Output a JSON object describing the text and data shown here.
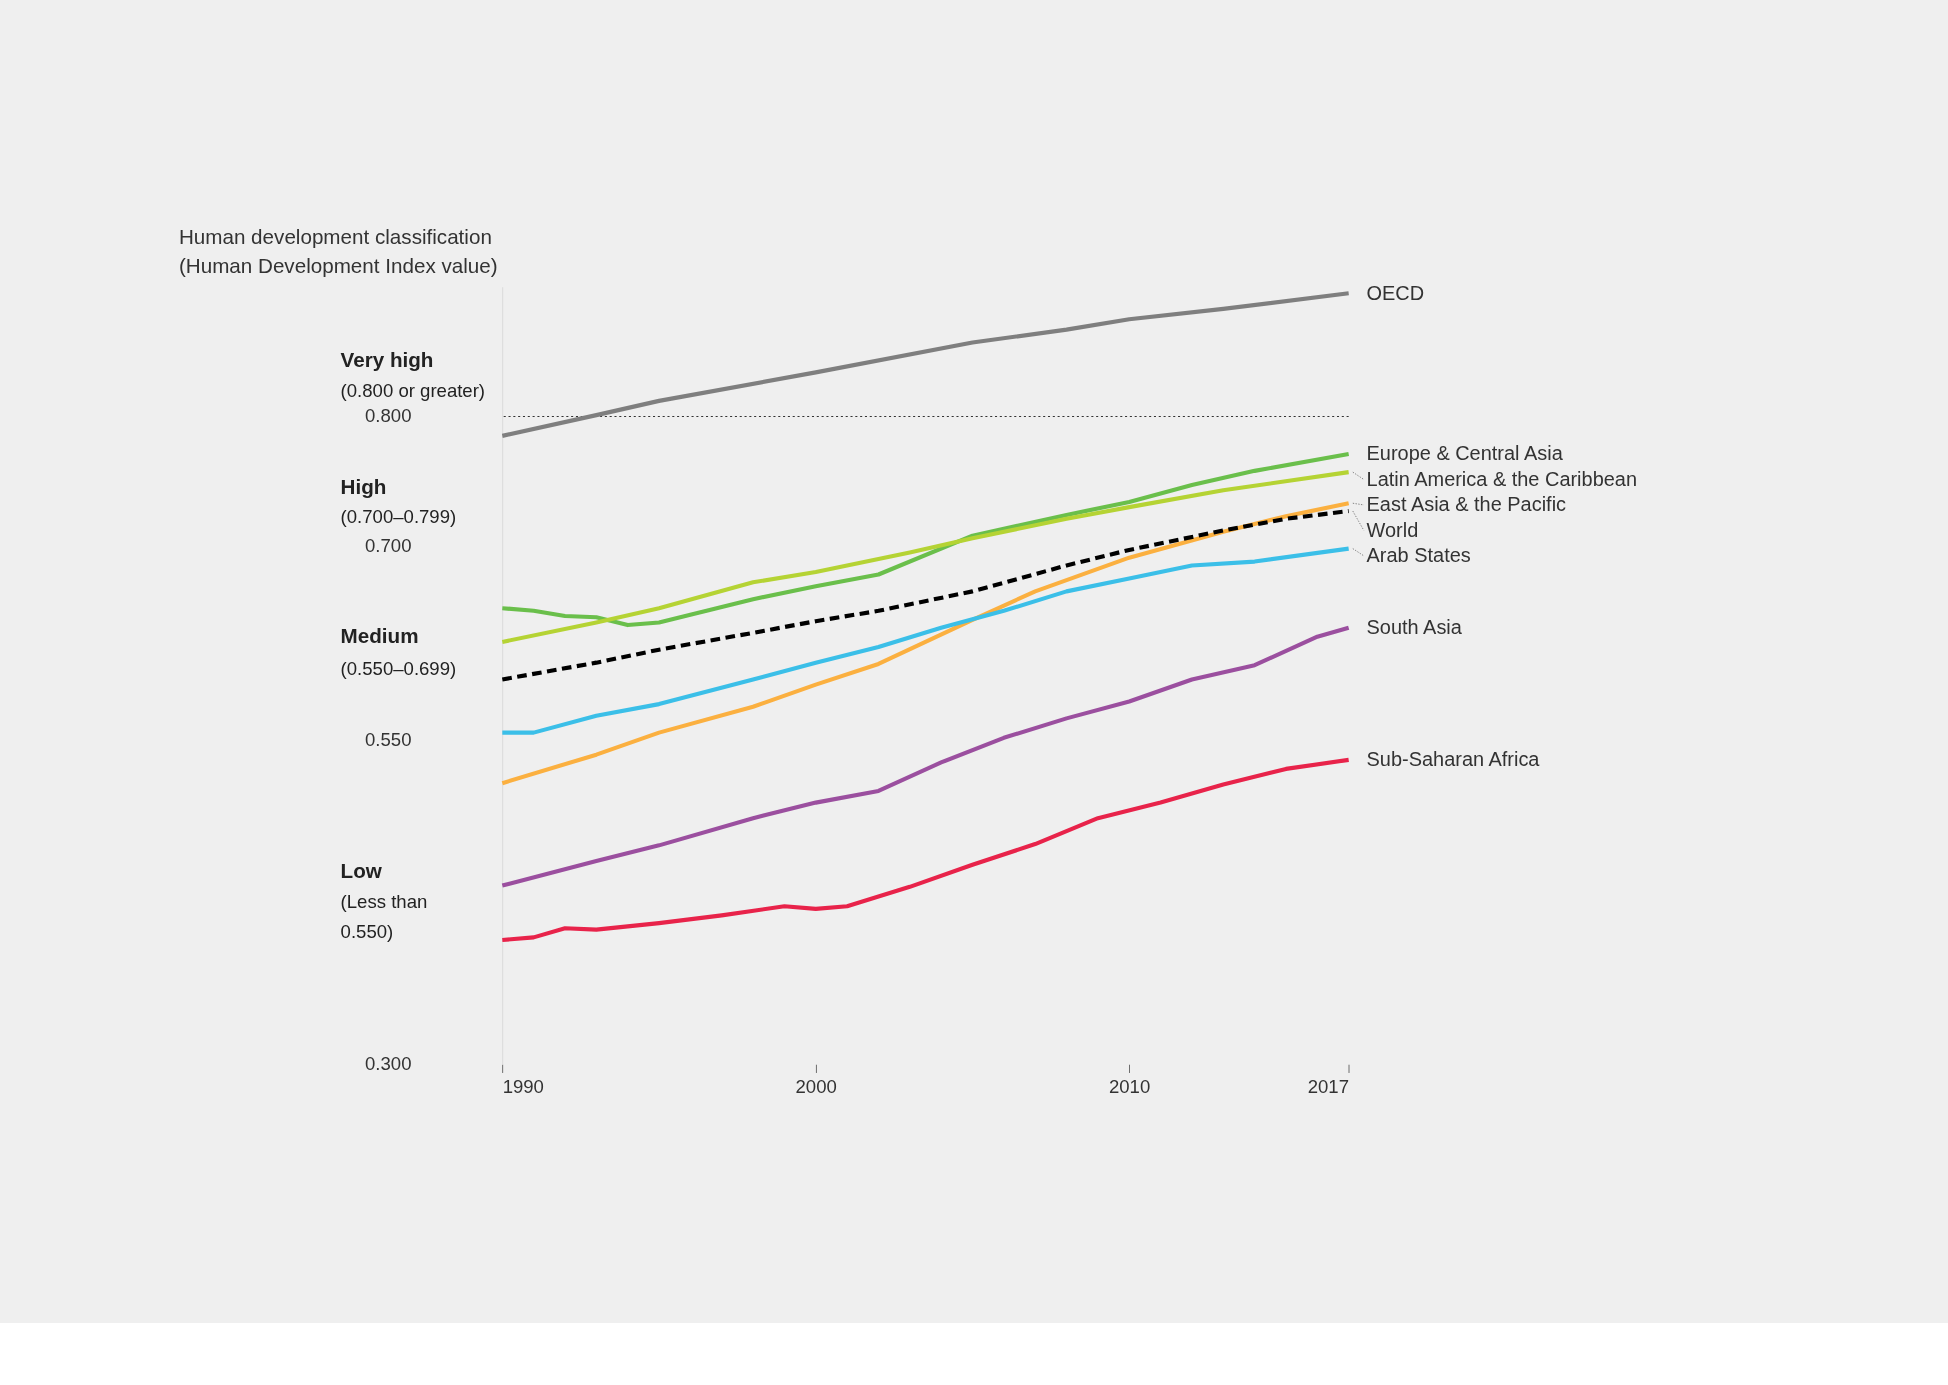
{
  "chart_data": {
    "type": "line",
    "title": "Human development classification",
    "subtitle": "(Human Development Index value)",
    "annotations": [
      "Very high",
      "(0.800 or greater)",
      "High",
      "(0.700–0.799)",
      "Medium",
      "(0.550–0.699)",
      "Low",
      "(Less than\n0.550)"
    ],
    "xlim": [
      1990,
      2017
    ],
    "xticks": [
      1990,
      2000,
      2010,
      2017
    ],
    "ylim": [
      0.3,
      0.9
    ],
    "yticks": [
      {
        "value": 0.3,
        "label": "0.300"
      },
      {
        "value": 0.55,
        "label": "0.550"
      },
      {
        "value": 0.7,
        "label": "0.700"
      },
      {
        "value": 0.8,
        "label": "0.800"
      }
    ],
    "ref_lines": [
      {
        "axis": "y",
        "value": 0.8,
        "color": "#333333",
        "line_style": "dotted"
      }
    ],
    "grid": false,
    "series": [
      {
        "name": "OECD",
        "color": "#7f7f7f",
        "x": [
          1990,
          1993,
          1995,
          2000,
          2005,
          2008,
          2010,
          2013,
          2017
        ],
        "values": [
          0.785,
          0.801,
          0.812,
          0.834,
          0.857,
          0.867,
          0.875,
          0.883,
          0.895
        ]
      },
      {
        "name": "Europe & Central Asia",
        "color": "#6abf4b",
        "x": [
          1990,
          1991,
          1992,
          1993,
          1994,
          1995,
          1998,
          2000,
          2002,
          2005,
          2008,
          2010,
          2012,
          2014,
          2017
        ],
        "values": [
          0.652,
          0.65,
          0.646,
          0.645,
          0.639,
          0.641,
          0.659,
          0.669,
          0.678,
          0.708,
          0.724,
          0.734,
          0.747,
          0.758,
          0.771
        ]
      },
      {
        "name": "Latin America & the Caribbean",
        "color": "#b5d334",
        "x": [
          1990,
          1993,
          1995,
          1998,
          2000,
          2002,
          2003,
          2005,
          2008,
          2010,
          2013,
          2017
        ],
        "values": [
          0.626,
          0.641,
          0.652,
          0.672,
          0.68,
          0.69,
          0.695,
          0.706,
          0.721,
          0.73,
          0.743,
          0.757
        ]
      },
      {
        "name": "East Asia & the Pacific",
        "color": "#fbb040",
        "x": [
          1990,
          1993,
          1995,
          1998,
          2000,
          2002,
          2005,
          2007,
          2010,
          2013,
          2015,
          2017
        ],
        "values": [
          0.517,
          0.539,
          0.556,
          0.576,
          0.593,
          0.609,
          0.643,
          0.665,
          0.691,
          0.711,
          0.723,
          0.733
        ]
      },
      {
        "name": "World",
        "color": "#000000",
        "line_style": "dashed",
        "x": [
          1990,
          1993,
          1995,
          1998,
          2000,
          2002,
          2005,
          2008,
          2010,
          2013,
          2015,
          2017
        ],
        "values": [
          0.597,
          0.61,
          0.62,
          0.633,
          0.642,
          0.65,
          0.665,
          0.685,
          0.697,
          0.712,
          0.721,
          0.727
        ]
      },
      {
        "name": "Arab States",
        "color": "#3bbfe8",
        "x": [
          1990,
          1991,
          1993,
          1995,
          1998,
          2000,
          2002,
          2004,
          2006,
          2008,
          2010,
          2012,
          2014,
          2017
        ],
        "values": [
          0.556,
          0.556,
          0.569,
          0.578,
          0.597,
          0.61,
          0.622,
          0.637,
          0.65,
          0.665,
          0.675,
          0.685,
          0.688,
          0.698
        ]
      },
      {
        "name": "South Asia",
        "color": "#9b4f9f",
        "x": [
          1990,
          1993,
          1995,
          1998,
          2000,
          2002,
          2004,
          2006,
          2008,
          2010,
          2012,
          2014,
          2016,
          2017
        ],
        "values": [
          0.438,
          0.457,
          0.469,
          0.49,
          0.502,
          0.511,
          0.533,
          0.552,
          0.567,
          0.58,
          0.597,
          0.608,
          0.63,
          0.637
        ]
      },
      {
        "name": "Sub-Saharan Africa",
        "color": "#e8234a",
        "x": [
          1990,
          1991,
          1992,
          1993,
          1995,
          1997,
          1999,
          2000,
          2001,
          2003,
          2005,
          2007,
          2009,
          2011,
          2013,
          2015,
          2017
        ],
        "values": [
          0.396,
          0.398,
          0.405,
          0.404,
          0.409,
          0.415,
          0.422,
          0.42,
          0.422,
          0.437,
          0.454,
          0.47,
          0.49,
          0.502,
          0.516,
          0.528,
          0.535
        ]
      }
    ]
  }
}
